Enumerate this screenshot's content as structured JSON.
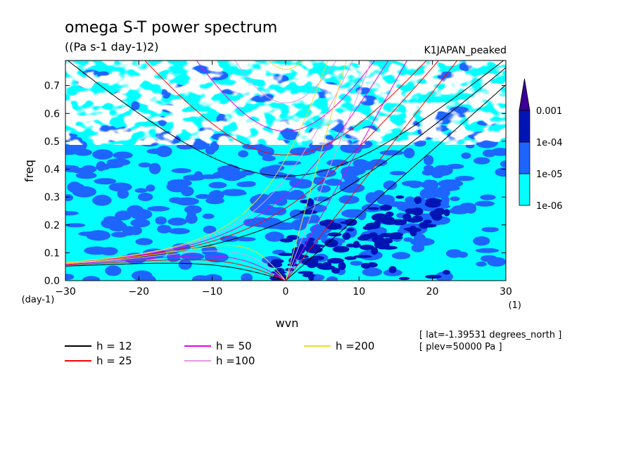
{
  "chart_data": {
    "type": "heatmap",
    "title": "omega S-T power spectrum",
    "subtitle": "((Pa s-1 day-1)2)",
    "run_label": "K1JAPAN_peaked",
    "xlabel": "wvn",
    "ylabel": "freq",
    "x_unit": "(1)",
    "y_unit": "(day-1)",
    "xlim": [
      -30,
      30
    ],
    "ylim": [
      0,
      0.79
    ],
    "x_ticks": [
      -30,
      -20,
      -10,
      0,
      10,
      20,
      30
    ],
    "x_tick_labels": [
      "−30",
      "−20",
      "−10",
      "0",
      "10",
      "20",
      "30"
    ],
    "y_ticks": [
      0.0,
      0.1,
      0.2,
      0.3,
      0.4,
      0.5,
      0.6,
      0.7
    ],
    "y_tick_labels": [
      "0.0",
      "0.1",
      "0.2",
      "0.3",
      "0.4",
      "0.5",
      "0.6",
      "0.7"
    ],
    "colorbar": {
      "levels": [
        1e-06,
        1e-05,
        0.0001,
        0.001
      ],
      "labels": [
        "1e-06",
        "1e-05",
        "1e-04",
        "0.001"
      ],
      "colors": [
        "#00ffff",
        "#1e64ff",
        "#0014b4",
        "#3c0096"
      ],
      "extend": "max"
    },
    "series": [
      {
        "name": "h = 12",
        "equivalent_depth": 12,
        "color": "#000000"
      },
      {
        "name": "h = 25",
        "equivalent_depth": 25,
        "color": "#ff0000"
      },
      {
        "name": "h = 50",
        "equivalent_depth": 50,
        "color": "#e600e6"
      },
      {
        "name": "h =100",
        "equivalent_depth": 100,
        "color": "#e696e6"
      },
      {
        "name": "h =200",
        "equivalent_depth": 200,
        "color": "#e6dc32"
      }
    ],
    "annotations": [
      "[ lat=-1.39531 degrees_north ]",
      "[ plev=50000 Pa ]"
    ]
  }
}
